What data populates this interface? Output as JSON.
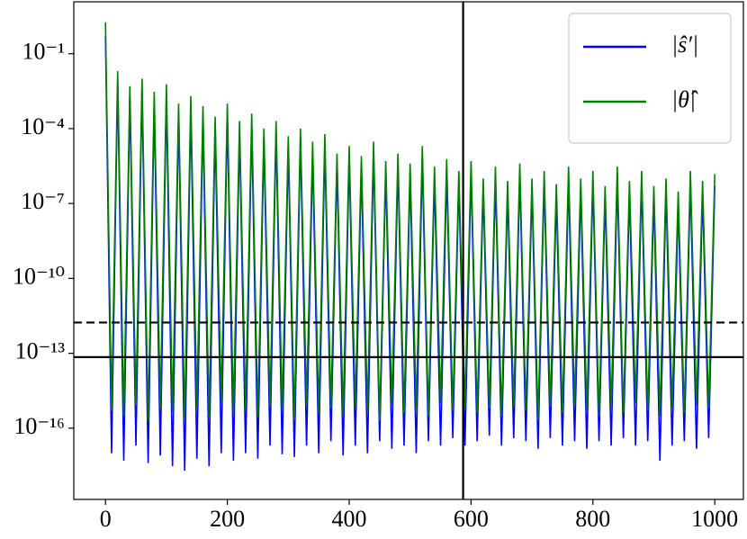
{
  "chart_data": {
    "type": "line",
    "yscale": "log",
    "grid": false,
    "legend": "upper right",
    "x": [
      0,
      10,
      20,
      30,
      40,
      50,
      60,
      70,
      80,
      90,
      100,
      110,
      120,
      130,
      140,
      150,
      160,
      170,
      180,
      190,
      200,
      210,
      220,
      230,
      240,
      250,
      260,
      270,
      280,
      290,
      300,
      310,
      320,
      330,
      340,
      350,
      360,
      370,
      380,
      390,
      400,
      410,
      420,
      430,
      440,
      450,
      460,
      470,
      480,
      490,
      500,
      510,
      520,
      530,
      540,
      550,
      560,
      570,
      580,
      590,
      600,
      610,
      620,
      630,
      640,
      650,
      660,
      670,
      680,
      690,
      700,
      710,
      720,
      730,
      740,
      750,
      760,
      770,
      780,
      790,
      800,
      810,
      820,
      830,
      840,
      850,
      860,
      870,
      880,
      890,
      900,
      910,
      920,
      930,
      940,
      950,
      960,
      970,
      980,
      990,
      1000
    ],
    "series": [
      {
        "name": "|ŝ′|",
        "color": "#0000ff",
        "values": [
          0.5,
          1e-17,
          0.008,
          5e-18,
          0.002,
          2e-17,
          0.004,
          4e-18,
          0.001,
          8e-18,
          0.002,
          3e-18,
          0.0004,
          2e-18,
          0.0007,
          6e-18,
          0.0003,
          3e-18,
          0.0001,
          1e-17,
          0.0004,
          5e-18,
          8e-05,
          1e-17,
          0.00015,
          6e-18,
          4e-05,
          2e-17,
          8e-05,
          9e-18,
          2e-05,
          7e-18,
          4e-05,
          2e-17,
          1e-05,
          1e-17,
          2e-05,
          3e-17,
          4e-06,
          8e-18,
          8e-06,
          2e-17,
          3e-06,
          1e-17,
          1e-05,
          3e-17,
          2e-06,
          1.5e-17,
          4e-06,
          2e-17,
          1.5e-06,
          1e-17,
          7e-06,
          3e-17,
          1e-06,
          2e-17,
          2e-06,
          4e-17,
          8e-07,
          2e-17,
          2e-06,
          3e-17,
          4e-07,
          5e-17,
          1e-06,
          2e-17,
          3e-07,
          4e-17,
          1.5e-06,
          3e-17,
          4e-07,
          1.5e-17,
          8e-07,
          4e-17,
          2e-07,
          2e-17,
          1e-06,
          3e-17,
          4e-07,
          1.5e-17,
          8e-07,
          3e-17,
          2e-07,
          2e-17,
          1e-06,
          4e-17,
          3e-07,
          2e-17,
          8e-07,
          3e-17,
          2e-07,
          5e-18,
          4e-07,
          2e-17,
          1e-07,
          3e-17,
          8e-07,
          1.5e-17,
          3e-07,
          4e-17,
          5e-07
        ]
      },
      {
        "name": "|θ̂|",
        "color": "#008000",
        "values": [
          1.8,
          5e-16,
          0.02,
          3e-16,
          0.005,
          8e-16,
          0.01,
          2e-16,
          0.003,
          6e-16,
          0.006,
          4e-16,
          0.001,
          2e-16,
          0.002,
          7e-16,
          0.0008,
          3e-16,
          0.0003,
          1e-15,
          0.001,
          4e-16,
          0.0002,
          6e-16,
          0.0004,
          3e-16,
          0.0001,
          8e-16,
          0.0002,
          5e-16,
          5e-05,
          2e-16,
          0.0001,
          9e-16,
          3e-05,
          4e-16,
          6e-05,
          6e-16,
          1e-05,
          3e-16,
          2e-05,
          7e-16,
          8e-06,
          5e-16,
          3e-05,
          2e-16,
          5e-06,
          8e-16,
          1e-05,
          4e-16,
          4e-06,
          6e-16,
          2e-05,
          3e-16,
          3e-06,
          1e-15,
          6e-06,
          5e-16,
          2e-06,
          7e-16,
          5e-06,
          4e-16,
          1e-06,
          6e-16,
          3e-06,
          3e-16,
          8e-07,
          8e-16,
          4e-06,
          5e-16,
          1e-06,
          2e-16,
          2e-06,
          7e-16,
          6e-07,
          4e-16,
          3e-06,
          9e-16,
          1e-06,
          5e-16,
          2e-06,
          3e-16,
          5e-07,
          6e-16,
          3e-06,
          4e-16,
          8e-07,
          1e-15,
          2e-06,
          5e-16,
          5e-07,
          3e-16,
          1e-06,
          7e-16,
          3e-07,
          4e-16,
          2e-06,
          8e-16,
          8e-07,
          6e-16,
          1.5e-06
        ]
      }
    ],
    "hlines": [
      {
        "value": 1.7e-12,
        "style": "dashed"
      },
      {
        "value": 7e-14,
        "style": "solid"
      }
    ],
    "vlines": [
      587
    ],
    "xlim": [
      -52,
      1047
    ],
    "xticks": [
      0,
      200,
      400,
      600,
      800,
      1000
    ],
    "ylim": [
      1.4e-19,
      12
    ],
    "yticks": [
      {
        "value": 1e-16,
        "label": "10⁻¹⁶"
      },
      {
        "value": 1e-13,
        "label": "10⁻¹³"
      },
      {
        "value": 1e-10,
        "label": "10⁻¹⁰"
      },
      {
        "value": 1e-07,
        "label": "10⁻⁷"
      },
      {
        "value": 0.0001,
        "label": "10⁻⁴"
      },
      {
        "value": 0.1,
        "label": "10⁻¹"
      }
    ]
  }
}
